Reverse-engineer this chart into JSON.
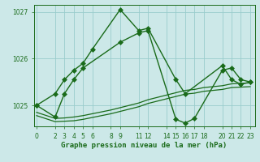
{
  "title": "Graphe pression niveau de la mer (hPa)",
  "bg_color": "#cce8e8",
  "grid_color": "#99cccc",
  "line_color": "#1a6b1a",
  "ylim": [
    1024.55,
    1027.15
  ],
  "yticks": [
    1025,
    1026,
    1027
  ],
  "ytick_labels": [
    "1025",
    "1026",
    "1027"
  ],
  "xtick_labels": [
    "0",
    "2",
    "3",
    "4",
    "5",
    "6",
    "8",
    "9",
    "11",
    "12",
    "14",
    "15",
    "16",
    "17",
    "18",
    "20",
    "21",
    "22",
    "23"
  ],
  "xtick_positions": [
    0,
    2,
    3,
    4,
    5,
    6,
    8,
    9,
    11,
    12,
    14,
    15,
    16,
    17,
    18,
    20,
    21,
    22,
    23
  ],
  "series": [
    {
      "x": [
        0,
        2,
        3,
        4,
        5,
        6,
        9,
        11,
        12,
        15,
        16,
        20,
        21,
        22,
        23
      ],
      "y": [
        1025.0,
        1025.25,
        1025.55,
        1025.75,
        1025.9,
        1026.2,
        1027.05,
        1026.6,
        1026.65,
        1025.55,
        1025.25,
        1025.85,
        1025.55,
        1025.45,
        1025.5
      ],
      "marker": "D",
      "markersize": 3,
      "linewidth": 1.0
    },
    {
      "x": [
        0,
        2,
        3,
        4,
        5,
        9,
        11,
        12,
        15,
        16,
        17,
        20,
        21,
        22,
        23
      ],
      "y": [
        1025.0,
        1024.75,
        1025.25,
        1025.55,
        1025.8,
        1026.35,
        1026.55,
        1026.6,
        1024.7,
        1024.62,
        1024.72,
        1025.75,
        1025.8,
        1025.55,
        1025.5
      ],
      "marker": "D",
      "markersize": 3,
      "linewidth": 1.0
    },
    {
      "x": [
        0,
        2,
        3,
        4,
        5,
        6,
        8,
        9,
        11,
        12,
        14,
        15,
        16,
        17,
        18,
        20,
        21,
        22,
        23
      ],
      "y": [
        1024.85,
        1024.72,
        1024.73,
        1024.75,
        1024.78,
        1024.82,
        1024.9,
        1024.95,
        1025.05,
        1025.12,
        1025.22,
        1025.27,
        1025.32,
        1025.34,
        1025.38,
        1025.42,
        1025.46,
        1025.47,
        1025.48
      ],
      "marker": null,
      "markersize": 0,
      "linewidth": 0.9
    },
    {
      "x": [
        0,
        2,
        3,
        4,
        5,
        6,
        8,
        9,
        11,
        12,
        14,
        15,
        16,
        17,
        18,
        20,
        21,
        22,
        23
      ],
      "y": [
        1024.78,
        1024.65,
        1024.66,
        1024.67,
        1024.7,
        1024.74,
        1024.82,
        1024.87,
        1024.97,
        1025.04,
        1025.14,
        1025.19,
        1025.24,
        1025.26,
        1025.3,
        1025.34,
        1025.38,
        1025.39,
        1025.4
      ],
      "marker": null,
      "markersize": 0,
      "linewidth": 0.9
    }
  ]
}
